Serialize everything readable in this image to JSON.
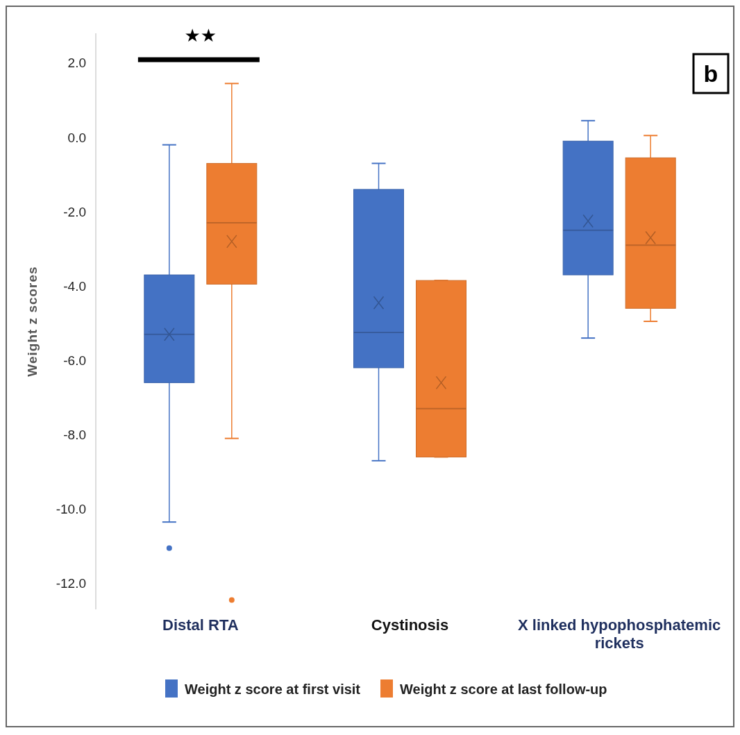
{
  "chart_data": {
    "type": "box",
    "ylabel": "Weight z scores",
    "categories": [
      "Distal RTA",
      "Cystinosis",
      "X linked hypophosphatemic rickets"
    ],
    "series": [
      {
        "name": "Weight z score at first visit",
        "color": "#4472c4",
        "boxes": [
          {
            "low": -10.35,
            "q1": -6.6,
            "median": -5.3,
            "q3": -3.7,
            "high": -0.2,
            "mean": -5.3,
            "outliers": [
              -11.05
            ]
          },
          {
            "low": -8.7,
            "q1": -6.2,
            "median": -5.25,
            "q3": -1.4,
            "high": -0.7,
            "mean": -4.45
          },
          {
            "low": -5.4,
            "q1": -3.7,
            "median": -2.5,
            "q3": -0.1,
            "high": 0.45,
            "mean": -2.25
          }
        ]
      },
      {
        "name": "Weight z score at last follow-up",
        "color": "#ed7d31",
        "boxes": [
          {
            "low": -8.1,
            "q1": -3.95,
            "median": -2.3,
            "q3": -0.7,
            "high": 1.45,
            "mean": -2.8,
            "outliers": [
              -12.45
            ]
          },
          {
            "low": -8.6,
            "q1": -8.6,
            "median": -7.3,
            "q3": -3.85,
            "high": -3.85,
            "mean": -6.6
          },
          {
            "low": -4.95,
            "q1": -4.6,
            "median": -2.9,
            "q3": -0.55,
            "high": 0.05,
            "mean": -2.7
          }
        ]
      }
    ],
    "ylim": [
      -12.7,
      2.8
    ],
    "yticks": [
      {
        "value": -12,
        "label": "-12.0"
      },
      {
        "value": -10,
        "label": "-10.0"
      },
      {
        "value": -8,
        "label": "-8.0"
      },
      {
        "value": -6,
        "label": "-6.0"
      },
      {
        "value": -4,
        "label": "-4.0"
      },
      {
        "value": -2,
        "label": "-2.0"
      },
      {
        "value": 0,
        "label": "0.0"
      },
      {
        "value": 2,
        "label": "2.0"
      }
    ],
    "grid": false,
    "legend": "bottom",
    "marker": "circle",
    "annotations": [
      "★★",
      "b"
    ]
  }
}
